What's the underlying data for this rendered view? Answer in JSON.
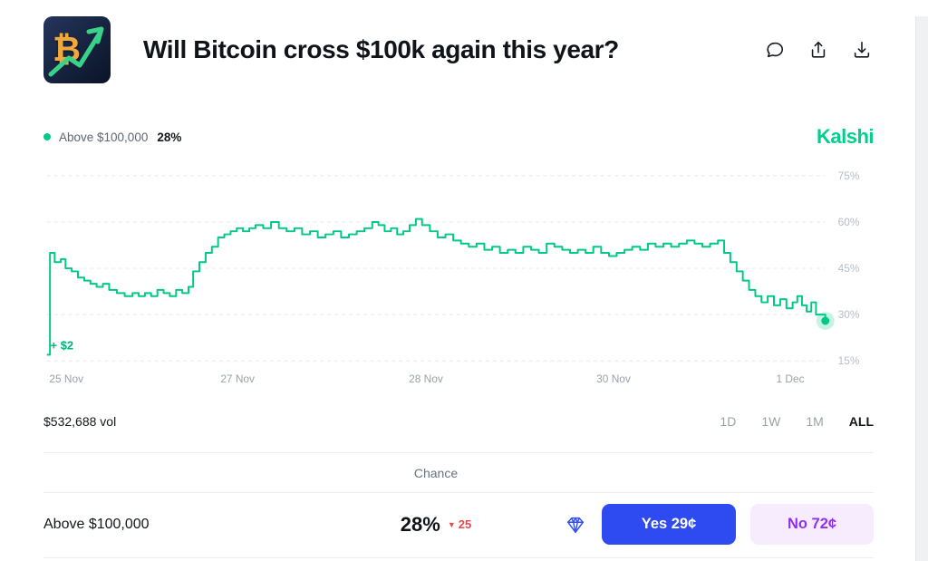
{
  "colors": {
    "green": "#00c986",
    "brand_green": "#00d08c",
    "yes_blue": "#2d4bf0",
    "no_purple": "#8f30ee",
    "no_bg": "#f6ecfd",
    "red": "#e5484d"
  },
  "header": {
    "title": "Will Bitcoin cross $100k again this year?",
    "logo_char": "₿"
  },
  "legend": {
    "series_label": "Above $100,000",
    "series_value": "28%",
    "brand": "Kalshi"
  },
  "chart_data": {
    "type": "line",
    "step": true,
    "series_name": "Above $100,000",
    "line_color": "#00c986",
    "grid_color": "#e6e8eb",
    "ylim": [
      15,
      75
    ],
    "yticks": [
      75,
      60,
      45,
      30,
      15
    ],
    "ytick_suffix": "%",
    "start_label": "+ $2",
    "current_value": 28,
    "xlabels": [
      {
        "label": "25 Nov",
        "x": 0.025
      },
      {
        "label": "27 Nov",
        "x": 0.245
      },
      {
        "label": "28 Nov",
        "x": 0.487
      },
      {
        "label": "30 Nov",
        "x": 0.728
      },
      {
        "label": "1 Dec",
        "x": 0.955
      }
    ],
    "points": [
      [
        0.0,
        17
      ],
      [
        0.004,
        50
      ],
      [
        0.01,
        47
      ],
      [
        0.018,
        48
      ],
      [
        0.024,
        45
      ],
      [
        0.032,
        44
      ],
      [
        0.04,
        42
      ],
      [
        0.048,
        41
      ],
      [
        0.056,
        40
      ],
      [
        0.064,
        39
      ],
      [
        0.072,
        40
      ],
      [
        0.08,
        38
      ],
      [
        0.09,
        37
      ],
      [
        0.1,
        36
      ],
      [
        0.11,
        37
      ],
      [
        0.118,
        36
      ],
      [
        0.126,
        37
      ],
      [
        0.134,
        36
      ],
      [
        0.142,
        38
      ],
      [
        0.15,
        37
      ],
      [
        0.158,
        36
      ],
      [
        0.166,
        38
      ],
      [
        0.174,
        37
      ],
      [
        0.182,
        39
      ],
      [
        0.188,
        44
      ],
      [
        0.196,
        47
      ],
      [
        0.204,
        50
      ],
      [
        0.212,
        52
      ],
      [
        0.22,
        55
      ],
      [
        0.228,
        56
      ],
      [
        0.236,
        57
      ],
      [
        0.244,
        58
      ],
      [
        0.252,
        57
      ],
      [
        0.26,
        58
      ],
      [
        0.268,
        59
      ],
      [
        0.278,
        58
      ],
      [
        0.288,
        60
      ],
      [
        0.298,
        58
      ],
      [
        0.308,
        57
      ],
      [
        0.318,
        58
      ],
      [
        0.328,
        56
      ],
      [
        0.338,
        57
      ],
      [
        0.348,
        55
      ],
      [
        0.358,
        56
      ],
      [
        0.368,
        57
      ],
      [
        0.378,
        55
      ],
      [
        0.388,
        56
      ],
      [
        0.398,
        57
      ],
      [
        0.408,
        58
      ],
      [
        0.418,
        60
      ],
      [
        0.426,
        59
      ],
      [
        0.434,
        57
      ],
      [
        0.442,
        58
      ],
      [
        0.45,
        56
      ],
      [
        0.458,
        57
      ],
      [
        0.466,
        59
      ],
      [
        0.474,
        61
      ],
      [
        0.482,
        59
      ],
      [
        0.492,
        57
      ],
      [
        0.502,
        55
      ],
      [
        0.512,
        56
      ],
      [
        0.522,
        54
      ],
      [
        0.532,
        53
      ],
      [
        0.542,
        52
      ],
      [
        0.552,
        53
      ],
      [
        0.562,
        51
      ],
      [
        0.572,
        52
      ],
      [
        0.582,
        50
      ],
      [
        0.592,
        51
      ],
      [
        0.602,
        50
      ],
      [
        0.612,
        52
      ],
      [
        0.622,
        51
      ],
      [
        0.632,
        50
      ],
      [
        0.642,
        53
      ],
      [
        0.652,
        52
      ],
      [
        0.662,
        51
      ],
      [
        0.672,
        50
      ],
      [
        0.682,
        51
      ],
      [
        0.692,
        50
      ],
      [
        0.702,
        52
      ],
      [
        0.712,
        50
      ],
      [
        0.722,
        49
      ],
      [
        0.732,
        50
      ],
      [
        0.742,
        51
      ],
      [
        0.752,
        52
      ],
      [
        0.762,
        51
      ],
      [
        0.772,
        53
      ],
      [
        0.782,
        52
      ],
      [
        0.792,
        53
      ],
      [
        0.802,
        52
      ],
      [
        0.812,
        53
      ],
      [
        0.822,
        54
      ],
      [
        0.832,
        53
      ],
      [
        0.842,
        52
      ],
      [
        0.852,
        53
      ],
      [
        0.862,
        54
      ],
      [
        0.87,
        50
      ],
      [
        0.878,
        47
      ],
      [
        0.886,
        44
      ],
      [
        0.894,
        41
      ],
      [
        0.902,
        38
      ],
      [
        0.91,
        36
      ],
      [
        0.918,
        34
      ],
      [
        0.926,
        36
      ],
      [
        0.934,
        33
      ],
      [
        0.942,
        35
      ],
      [
        0.95,
        32
      ],
      [
        0.958,
        34
      ],
      [
        0.964,
        36
      ],
      [
        0.97,
        33
      ],
      [
        0.976,
        31
      ],
      [
        0.982,
        34
      ],
      [
        0.988,
        30
      ],
      [
        1.0,
        28
      ]
    ]
  },
  "stats": {
    "volume": "$532,688 vol",
    "ranges": [
      {
        "label": "1D",
        "active": false
      },
      {
        "label": "1W",
        "active": false
      },
      {
        "label": "1M",
        "active": false
      },
      {
        "label": "ALL",
        "active": true
      }
    ]
  },
  "market": {
    "chance_header": "Chance",
    "row": {
      "label": "Above $100,000",
      "chance": "28%",
      "change_arrow": "▼",
      "change_value": "25",
      "yes_label": "Yes 29¢",
      "no_label": "No 72¢"
    }
  }
}
